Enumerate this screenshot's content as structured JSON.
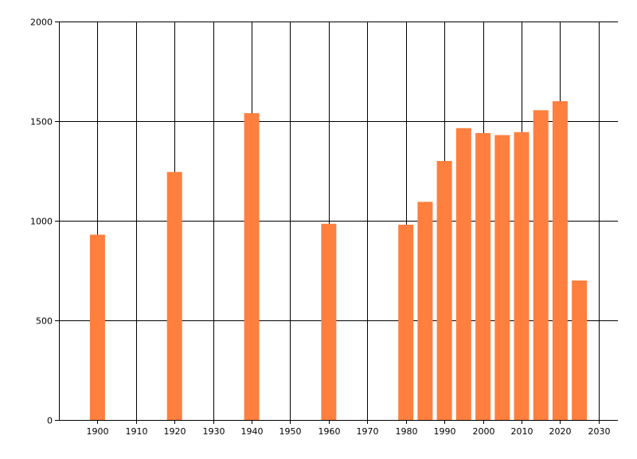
{
  "chart_data": {
    "type": "bar",
    "x": [
      1900,
      1920,
      1940,
      1960,
      1980,
      1985,
      1990,
      1995,
      2000,
      2005,
      2010,
      2015,
      2020,
      2025
    ],
    "values": [
      930,
      1245,
      1540,
      985,
      980,
      1095,
      1300,
      1465,
      1440,
      1430,
      1445,
      1555,
      1600,
      700
    ],
    "xlim": [
      1890,
      2035
    ],
    "ylim": [
      0,
      2000
    ],
    "x_ticks": [
      1900,
      1910,
      1920,
      1930,
      1940,
      1950,
      1960,
      1970,
      1980,
      1990,
      2000,
      2010,
      2020,
      2030
    ],
    "y_ticks": [
      0,
      500,
      1000,
      1500,
      2000
    ],
    "x_tick_labels": [
      "1900",
      "1910",
      "1920",
      "1930",
      "1940",
      "1950",
      "1960",
      "1970",
      "1980",
      "1990",
      "2000",
      "2010",
      "2020",
      "2030"
    ],
    "y_tick_labels": [
      "0",
      "500",
      "1000",
      "1500",
      "2000"
    ],
    "grid": true,
    "bar_color": "#ff7f3f",
    "grid_color": "#000000",
    "title": "",
    "xlabel": "",
    "ylabel": ""
  }
}
